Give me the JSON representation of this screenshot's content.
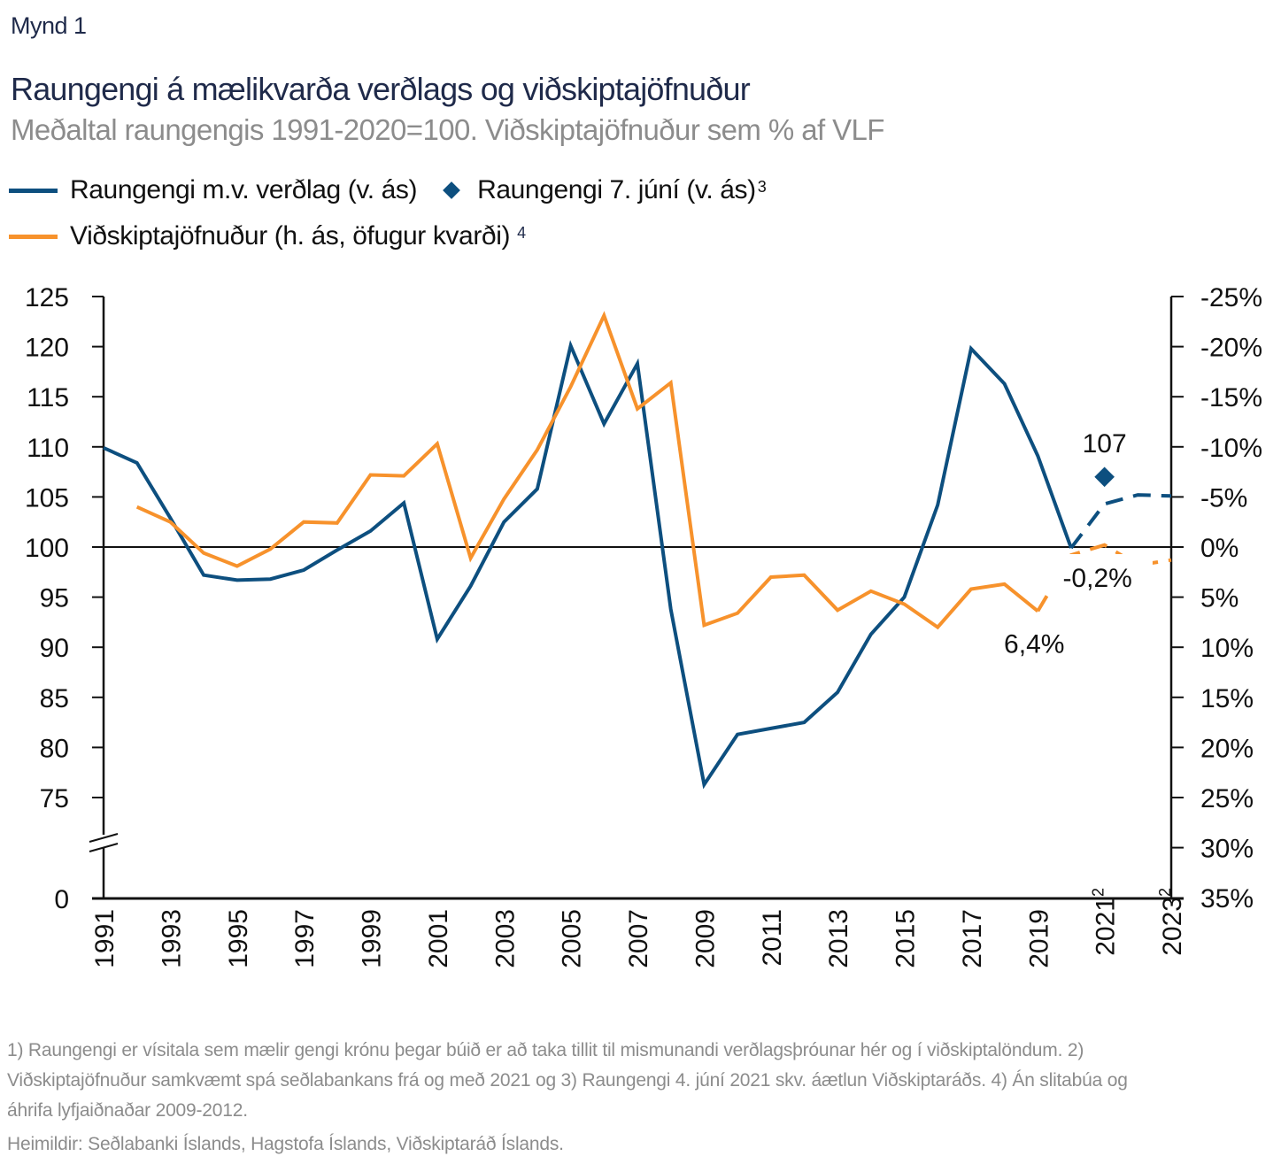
{
  "figure_label": "Mynd 1",
  "colors": {
    "blue": "#0d4f7f",
    "orange": "#f7922c",
    "title": "#1f2a4a",
    "muted": "#8c8c8c"
  },
  "chart_data": {
    "type": "line",
    "title": "Raungengi á mælikvarða verðlags og viðskiptajöfnuður",
    "subtitle": "Meðaltal raungengis 1991-2020=100. Viðskiptajöfnuður sem % af VLF",
    "legend": [
      {
        "name": "Raungengi m.v. verðlag (v. ás)",
        "marker": "line",
        "color": "#0d4f7f",
        "sup": ""
      },
      {
        "name": "Raungengi 7. júní (v. ás)",
        "marker": "diamond",
        "color": "#0d4f7f",
        "sup": "3"
      },
      {
        "name": "Viðskiptajöfnuður (h. ás, öfugur kvarði)",
        "marker": "line",
        "color": "#f7922c",
        "sup": "4"
      }
    ],
    "legend_placement": "top-left",
    "x": [
      1991,
      1992,
      1993,
      1994,
      1995,
      1996,
      1997,
      1998,
      1999,
      2000,
      2001,
      2002,
      2003,
      2004,
      2005,
      2006,
      2007,
      2008,
      2009,
      2010,
      2011,
      2012,
      2013,
      2014,
      2015,
      2016,
      2017,
      2018,
      2019,
      2020,
      2021,
      2022,
      2023
    ],
    "x_tick_labels": [
      {
        "year": 1991,
        "label": "1991",
        "sup": ""
      },
      {
        "year": 1993,
        "label": "1993",
        "sup": ""
      },
      {
        "year": 1995,
        "label": "1995",
        "sup": ""
      },
      {
        "year": 1997,
        "label": "1997",
        "sup": ""
      },
      {
        "year": 1999,
        "label": "1999",
        "sup": ""
      },
      {
        "year": 2001,
        "label": "2001",
        "sup": ""
      },
      {
        "year": 2003,
        "label": "2003",
        "sup": ""
      },
      {
        "year": 2005,
        "label": "2005",
        "sup": ""
      },
      {
        "year": 2007,
        "label": "2007",
        "sup": ""
      },
      {
        "year": 2009,
        "label": "2009",
        "sup": ""
      },
      {
        "year": 2011,
        "label": "2011",
        "sup": ""
      },
      {
        "year": 2013,
        "label": "2013",
        "sup": ""
      },
      {
        "year": 2015,
        "label": "2015",
        "sup": ""
      },
      {
        "year": 2017,
        "label": "2017",
        "sup": ""
      },
      {
        "year": 2019,
        "label": "2019",
        "sup": ""
      },
      {
        "year": 2021,
        "label": "2021",
        "sup": "2"
      },
      {
        "year": 2023,
        "label": "2023",
        "sup": "2"
      }
    ],
    "left_axis": {
      "ticks": [
        125,
        120,
        115,
        110,
        105,
        100,
        95,
        90,
        85,
        80,
        75
      ],
      "extra_tick": {
        "value": 0,
        "label": "0"
      },
      "ylim": [
        75,
        125
      ],
      "broken_axis": true,
      "reference_line": 100
    },
    "right_axis": {
      "ticks": [
        "-25%",
        "-20%",
        "-15%",
        "-10%",
        "-5%",
        "0%",
        "5%",
        "10%",
        "15%",
        "20%",
        "25%",
        "30%",
        "35%"
      ],
      "tick_values": [
        -25,
        -20,
        -15,
        -10,
        -5,
        0,
        5,
        10,
        15,
        20,
        25,
        30,
        35
      ],
      "ylim": [
        -25,
        35
      ],
      "inverted": true
    },
    "series": [
      {
        "name": "Raungengi m.v. verðlag (v. ás)",
        "axis": "left",
        "color": "#0d4f7f",
        "values": [
          109.9,
          108.4,
          102.9,
          97.2,
          96.7,
          96.8,
          97.7,
          99.7,
          101.6,
          104.4,
          90.8,
          96.1,
          102.5,
          105.8,
          120.1,
          112.3,
          118.3,
          93.8,
          76.3,
          81.3,
          81.9,
          82.5,
          85.5,
          91.3,
          95.0,
          104.2,
          119.8,
          116.3,
          109.1,
          99.9,
          104.3,
          105.2,
          105.1
        ],
        "forecast_from_year": 2020
      },
      {
        "name": "Viðskiptajöfnuður (h. ás, öfugur kvarði)",
        "axis": "right",
        "color": "#f7922c",
        "values": [
          null,
          -4.0,
          -2.5,
          0.6,
          1.9,
          0.2,
          -2.5,
          -2.4,
          -7.2,
          -7.1,
          -10.3,
          1.1,
          -4.8,
          -9.7,
          -16.0,
          -23.1,
          -13.8,
          -16.4,
          7.8,
          6.6,
          3.0,
          2.8,
          6.3,
          4.4,
          5.7,
          8.0,
          4.2,
          3.7,
          6.4,
          0.8,
          -0.2,
          1.8,
          1.3
        ],
        "forecast_from_year": 2019
      }
    ],
    "points": [
      {
        "name": "Raungengi 7. júní (v. ás)",
        "axis": "left",
        "x": 2021,
        "y": 107,
        "label": "107",
        "color": "#0d4f7f"
      }
    ],
    "annotations": [
      {
        "text": "6,4%",
        "refers_to": "Viðskiptajöfnuður 2019"
      },
      {
        "text": "-0,2%",
        "refers_to": "Viðskiptajöfnuður 2021"
      }
    ],
    "grid": false
  },
  "footnote": "1) Raungengi er vísitala sem mælir gengi krónu þegar búið er að taka tillit til mismunandi verðlagsþróunar hér og í viðskiptalöndum. 2) Viðskiptajöfnuður samkvæmt spá seðlabankans frá og með 2021 og 3) Raungengi 4. júní 2021 skv. áætlun Viðskiptaráðs. 4) Án slitabúa og áhrifa lyfjaiðnaðar 2009-2012.",
  "source": "Heimildir: Seðlabanki Íslands, Hagstofa Íslands, Viðskiptaráð Íslands."
}
